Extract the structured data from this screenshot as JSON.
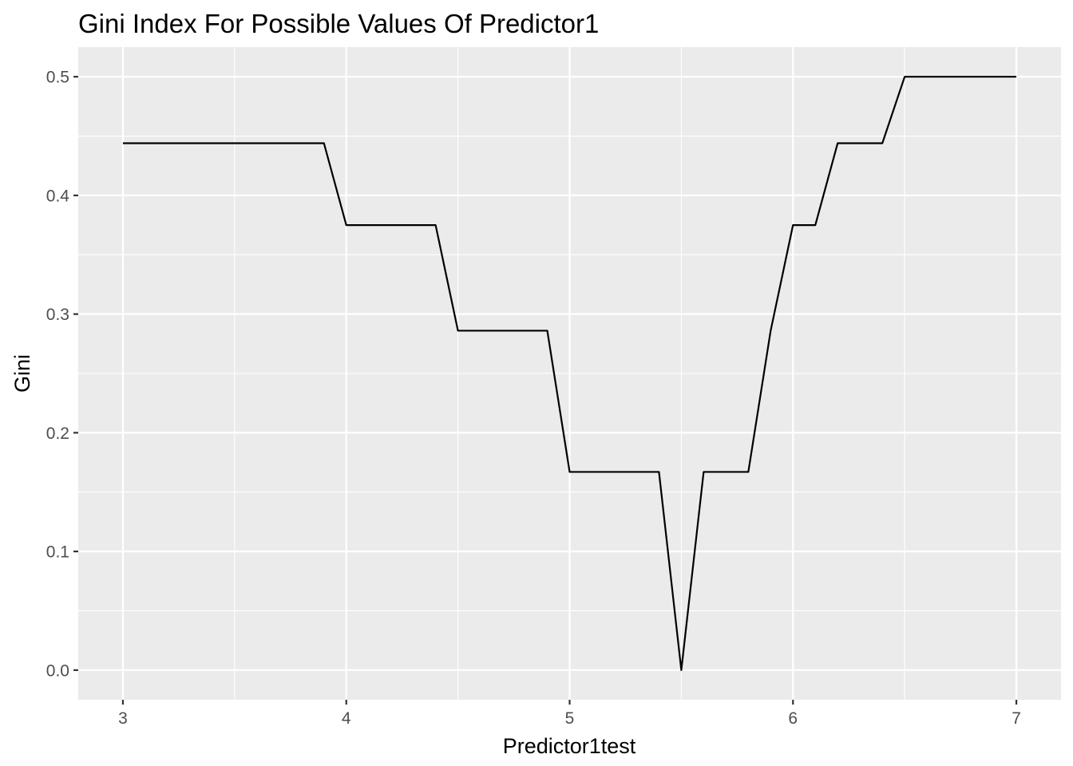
{
  "chart_data": {
    "type": "line",
    "title": "Gini Index For Possible Values Of Predictor1",
    "xlabel": "Predictor1test",
    "ylabel": "Gini",
    "xlim": [
      2.8,
      7.2
    ],
    "ylim": [
      -0.025,
      0.525
    ],
    "x_ticks": [
      3,
      4,
      5,
      6,
      7
    ],
    "x_tick_labels": [
      "3",
      "4",
      "5",
      "6",
      "7"
    ],
    "x_minor_ticks": [
      3.5,
      4.5,
      5.5,
      6.5
    ],
    "y_ticks": [
      0.0,
      0.1,
      0.2,
      0.3,
      0.4,
      0.5
    ],
    "y_tick_labels": [
      "0.0",
      "0.1",
      "0.2",
      "0.3",
      "0.4",
      "0.5"
    ],
    "y_minor_ticks": [
      0.05,
      0.15,
      0.25,
      0.35,
      0.45
    ],
    "grid": true,
    "legend": "none",
    "colors": {
      "panel_background": "#EBEBEB",
      "grid": "#FFFFFF",
      "line": "#000000",
      "tick_label": "#4D4D4D",
      "tick_mark": "#333333"
    },
    "series": [
      {
        "x": [
          3.0,
          3.1,
          3.2,
          3.3,
          3.4,
          3.5,
          3.6,
          3.7,
          3.8,
          3.9,
          4.0,
          4.1,
          4.2,
          4.3,
          4.4,
          4.5,
          4.6,
          4.7,
          4.8,
          4.9,
          5.0,
          5.1,
          5.2,
          5.3,
          5.4,
          5.5,
          5.6,
          5.7,
          5.8,
          5.9,
          6.0,
          6.1,
          6.2,
          6.3,
          6.4,
          6.5,
          6.6,
          6.7,
          6.8,
          6.9,
          7.0
        ],
        "values": [
          0.444,
          0.444,
          0.444,
          0.444,
          0.444,
          0.444,
          0.444,
          0.444,
          0.444,
          0.444,
          0.375,
          0.375,
          0.375,
          0.375,
          0.375,
          0.286,
          0.286,
          0.286,
          0.286,
          0.286,
          0.167,
          0.167,
          0.167,
          0.167,
          0.167,
          0.0,
          0.167,
          0.167,
          0.167,
          0.286,
          0.375,
          0.375,
          0.444,
          0.444,
          0.444,
          0.5,
          0.5,
          0.5,
          0.5,
          0.5,
          0.5
        ]
      }
    ]
  }
}
